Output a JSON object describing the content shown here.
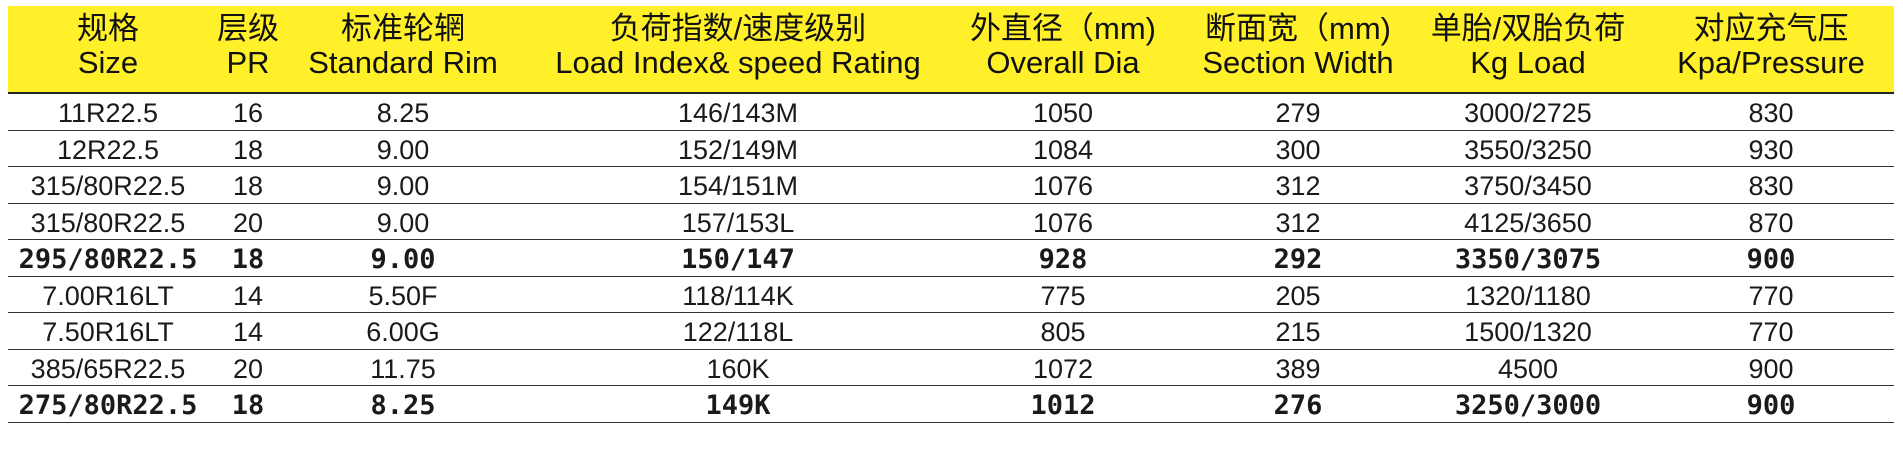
{
  "headers": [
    {
      "zh": "规格",
      "en": "Size"
    },
    {
      "zh": "层级",
      "en": "PR"
    },
    {
      "zh": "标准轮辋",
      "en": "Standard Rim"
    },
    {
      "zh": "负荷指数/速度级别",
      "en": "Load Index& speed Rating"
    },
    {
      "zh": "外直径（mm)",
      "en": "Overall Dia"
    },
    {
      "zh": "断面宽（mm)",
      "en": "Section Width"
    },
    {
      "zh": "单胎/双胎负荷",
      "en": "Kg Load"
    },
    {
      "zh": "对应充气压",
      "en": "Kpa/Pressure"
    }
  ],
  "rows": [
    [
      "11R22.5",
      "16",
      "8.25",
      "146/143M",
      "1050",
      "279",
      "3000/2725",
      "830"
    ],
    [
      "12R22.5",
      "18",
      "9.00",
      "152/149M",
      "1084",
      "300",
      "3550/3250",
      "930"
    ],
    [
      "315/80R22.5",
      "18",
      "9.00",
      "154/151M",
      "1076",
      "312",
      "3750/3450",
      "830"
    ],
    [
      "315/80R22.5",
      "20",
      "9.00",
      "157/153L",
      "1076",
      "312",
      "4125/3650",
      "870"
    ],
    [
      "295/80R22.5",
      "18",
      "9.00",
      "150/147",
      "928",
      "292",
      "3350/3075",
      "900"
    ],
    [
      "7.00R16LT",
      "14",
      "5.50F",
      "118/114K",
      "775",
      "205",
      "1320/1180",
      "770"
    ],
    [
      "7.50R16LT",
      "14",
      "6.00G",
      "122/118L",
      "805",
      "215",
      "1500/1320",
      "770"
    ],
    [
      "385/65R22.5",
      "20",
      "11.75",
      "160K",
      "1072",
      "389",
      "4500",
      "900"
    ],
    [
      "275/80R22.5",
      "18",
      "8.25",
      "149K",
      "1012",
      "276",
      "3250/3000",
      "900"
    ]
  ]
}
